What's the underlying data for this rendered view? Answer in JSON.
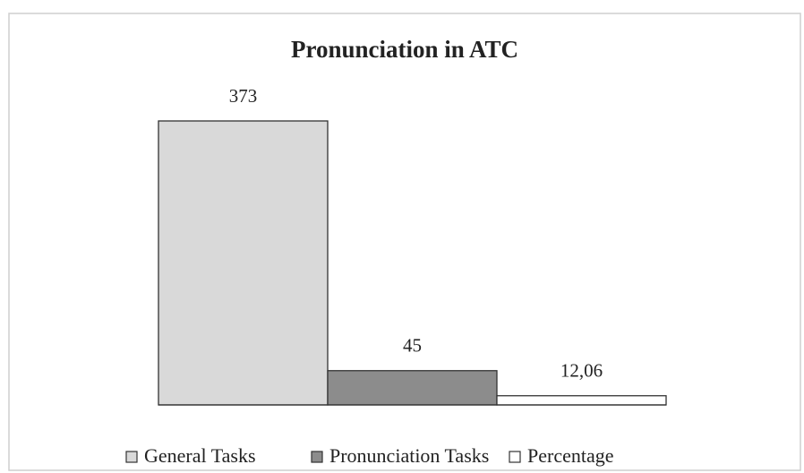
{
  "chart_data": {
    "type": "bar",
    "title": "Pronunciation in ATC",
    "series": [
      {
        "name": "General Tasks",
        "color": "#d9d9d9",
        "values": [
          373
        ]
      },
      {
        "name": "Pronunciation Tasks",
        "color": "#8c8c8c",
        "values": [
          45
        ]
      },
      {
        "name": "Percentage",
        "color": "#ffffff",
        "values": [
          12.06
        ],
        "value_labels": [
          "12,06"
        ]
      }
    ],
    "legend": "bottom"
  }
}
